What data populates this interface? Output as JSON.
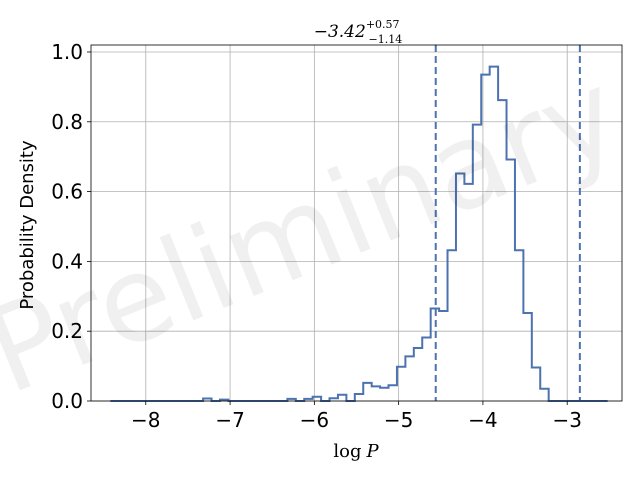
{
  "chart_data": {
    "type": "histogram",
    "title": {
      "value": "−3.42",
      "sup": "+0.57",
      "sub": "−1.14"
    },
    "xlabel": {
      "prefix": "log",
      "var": "P"
    },
    "ylabel": "Probability Density",
    "watermark": "Preliminary",
    "xlim": [
      -8.65,
      -2.35
    ],
    "ylim": [
      0.0,
      1.02
    ],
    "x_ticks": [
      {
        "value": -8,
        "label": "−8"
      },
      {
        "value": -7,
        "label": "−7"
      },
      {
        "value": -6,
        "label": "−6"
      },
      {
        "value": -5,
        "label": "−5"
      },
      {
        "value": -4,
        "label": "−4"
      },
      {
        "value": -3,
        "label": "−3"
      }
    ],
    "y_ticks": [
      {
        "value": 0.0,
        "label": "0.0"
      },
      {
        "value": 0.2,
        "label": "0.2"
      },
      {
        "value": 0.4,
        "label": "0.4"
      },
      {
        "value": 0.6,
        "label": "0.6"
      },
      {
        "value": 0.8,
        "label": "0.8"
      },
      {
        "value": 1.0,
        "label": "1.0"
      }
    ],
    "grid": true,
    "line_color": "#4c72b0",
    "bin_edges": [
      -8.42,
      -8.32,
      -8.22,
      -8.12,
      -8.02,
      -7.92,
      -7.82,
      -7.72,
      -7.62,
      -7.52,
      -7.42,
      -7.32,
      -7.22,
      -7.12,
      -7.02,
      -6.92,
      -6.82,
      -6.72,
      -6.62,
      -6.52,
      -6.42,
      -6.32,
      -6.22,
      -6.12,
      -6.02,
      -5.92,
      -5.82,
      -5.72,
      -5.62,
      -5.52,
      -5.42,
      -5.32,
      -5.22,
      -5.12,
      -5.02,
      -4.92,
      -4.82,
      -4.72,
      -4.62,
      -4.52,
      -4.42,
      -4.32,
      -4.22,
      -4.12,
      -4.02,
      -3.92,
      -3.82,
      -3.72,
      -3.62,
      -3.52,
      -3.42,
      -3.32,
      -3.22,
      -3.12,
      -3.02,
      -2.92,
      -2.82,
      -2.72,
      -2.62,
      -2.52
    ],
    "densities": [
      0.0,
      0.0,
      0.0,
      0.0,
      0.0,
      0.0,
      0.0,
      0.0,
      0.0,
      0.0,
      0.0,
      0.007,
      0.0,
      0.004,
      0.0,
      0.0,
      0.0,
      0.0,
      0.0,
      0.0,
      0.0,
      0.006,
      0.0,
      0.006,
      0.012,
      0.0,
      0.008,
      0.018,
      0.0,
      0.02,
      0.052,
      0.042,
      0.038,
      0.045,
      0.098,
      0.128,
      0.152,
      0.182,
      0.265,
      0.258,
      0.432,
      0.652,
      0.622,
      0.792,
      0.935,
      0.958,
      0.862,
      0.692,
      0.432,
      0.252,
      0.096,
      0.035,
      0.0,
      0.0,
      0.0,
      0.0,
      0.0,
      0.0,
      0.0
    ],
    "vlines": [
      {
        "x": -4.56,
        "style": "dashed"
      },
      {
        "x": -2.85,
        "style": "dashed"
      }
    ]
  }
}
